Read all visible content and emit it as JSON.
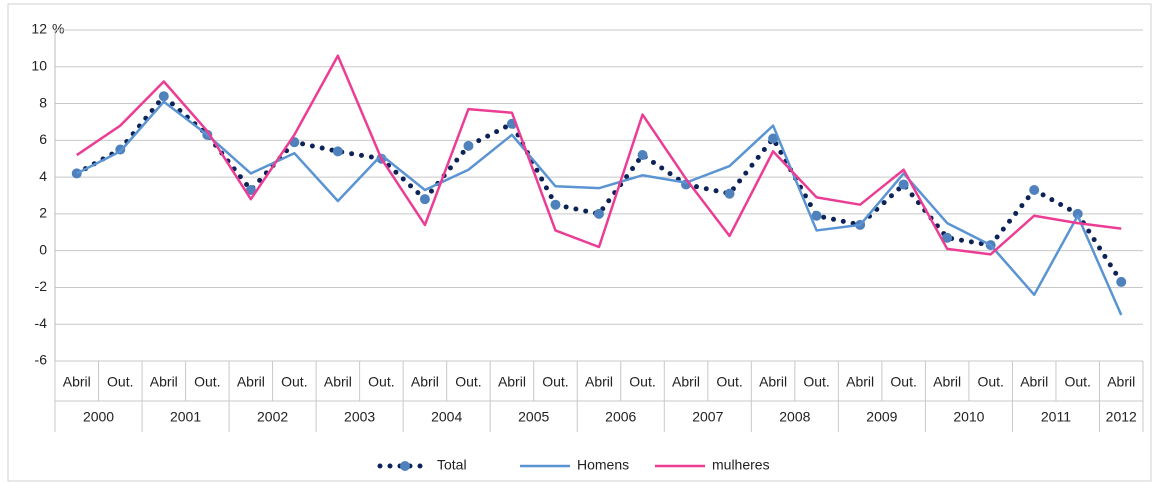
{
  "chart_data": {
    "type": "line",
    "y_unit": "%",
    "categories": [
      "Abril",
      "Out.",
      "Abril",
      "Out.",
      "Abril",
      "Out.",
      "Abril",
      "Out.",
      "Abril",
      "Out.",
      "Abril",
      "Out.",
      "Abril",
      "Out.",
      "Abril",
      "Out.",
      "Abril",
      "Out.",
      "Abril",
      "Out.",
      "Abril",
      "Out.",
      "Abril",
      "Out.",
      "Abril"
    ],
    "category_groups": [
      "2000",
      "2001",
      "2002",
      "2003",
      "2004",
      "2005",
      "2006",
      "2007",
      "2008",
      "2009",
      "2010",
      "2011",
      "2012"
    ],
    "series": [
      {
        "name": "Total",
        "color": "#0d2257",
        "marker_color": "#4f81bd",
        "style": "dotted",
        "values": [
          4.2,
          5.5,
          8.4,
          6.3,
          3.3,
          5.9,
          5.4,
          5.0,
          2.8,
          5.7,
          6.9,
          2.5,
          2.0,
          5.2,
          3.6,
          3.1,
          6.1,
          1.9,
          1.4,
          3.6,
          0.7,
          0.3,
          3.3,
          2.0,
          -1.7
        ]
      },
      {
        "name": "Homens",
        "color": "#5a94d2",
        "style": "solid",
        "values": [
          4.2,
          5.4,
          8.1,
          6.3,
          4.2,
          5.3,
          2.7,
          5.2,
          3.3,
          4.4,
          6.3,
          3.5,
          3.4,
          4.1,
          3.7,
          4.6,
          6.8,
          1.1,
          1.4,
          4.2,
          1.5,
          0.3,
          -2.4,
          1.9,
          -3.5
        ]
      },
      {
        "name": "mulheres",
        "color": "#ec3d95",
        "style": "solid",
        "values": [
          5.2,
          6.8,
          9.2,
          6.5,
          2.8,
          6.3,
          10.6,
          5.0,
          1.4,
          7.7,
          7.5,
          1.1,
          0.2,
          7.4,
          3.9,
          0.8,
          5.4,
          2.9,
          2.5,
          4.4,
          0.1,
          -0.2,
          1.9,
          1.5,
          1.2
        ]
      }
    ],
    "ylim": [
      -6,
      12
    ],
    "yticks": [
      -6,
      -4,
      -2,
      0,
      2,
      4,
      6,
      8,
      10,
      12
    ],
    "grid": true,
    "legend": "bottom"
  }
}
